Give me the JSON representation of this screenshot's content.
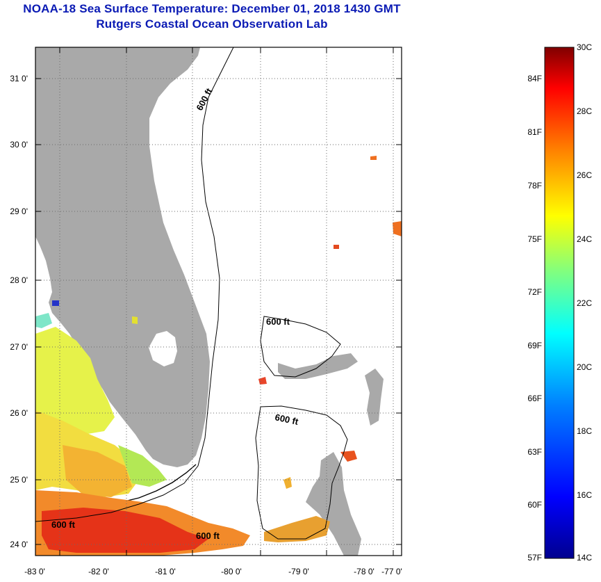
{
  "header": {
    "title": "NOAA-18 Sea Surface Temperature:  December 01, 2018 1430 GMT",
    "subtitle": "Rutgers Coastal Ocean Observation Lab"
  },
  "map": {
    "lon_labels": [
      "-83 0'",
      "-82 0'",
      "-81 0'",
      "-80 0'",
      "-79 0'",
      "-78 0'",
      "-77 0'"
    ],
    "lat_labels": [
      "31 0'",
      "30 0'",
      "29 0'",
      "28 0'",
      "27 0'",
      "26 0'",
      "25 0'",
      "24 0'"
    ],
    "contour_labels": [
      "600 ft",
      "600 ft",
      "600 ft",
      "600 ft",
      "600 ft"
    ],
    "colors": {
      "land": "#a9a9a9",
      "ocean_missing": "#ffffff",
      "grid": "#6a6a6a",
      "contour": "#000000"
    }
  },
  "colorbar": {
    "celsius_labels": [
      "30C",
      "28C",
      "26C",
      "24C",
      "22C",
      "20C",
      "18C",
      "16C",
      "14C"
    ],
    "fahrenheit_labels": [
      "84F",
      "81F",
      "78F",
      "75F",
      "72F",
      "69F",
      "66F",
      "63F",
      "60F",
      "57F"
    ],
    "range_c": [
      14,
      30
    ],
    "colors": [
      "#00008f",
      "#0000ff",
      "#0080ff",
      "#00ffff",
      "#80ff80",
      "#ffff00",
      "#ff8000",
      "#ff0000",
      "#800000"
    ]
  }
}
